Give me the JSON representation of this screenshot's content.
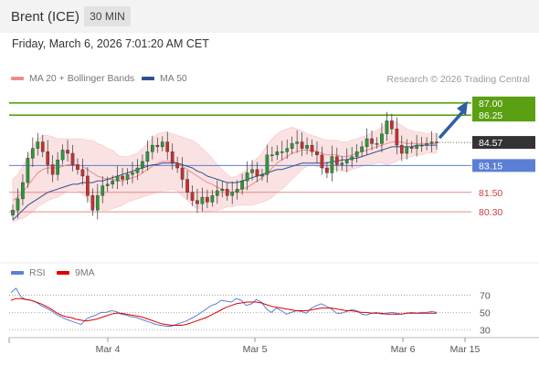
{
  "header": {
    "instrument": "Brent (ICE)",
    "interval": "30 MIN"
  },
  "timestamp": "Friday, March 6, 2026 7:01:20 AM CET",
  "legend": {
    "items": [
      {
        "label": "MA 20 + Bollinger Bands",
        "color": "#f08c8c"
      },
      {
        "label": "MA 50",
        "color": "#2f4f8f"
      }
    ],
    "credit": "Research © 2026 Trading Central"
  },
  "rsi_legend": {
    "items": [
      {
        "label": "RSI",
        "color": "#5b7fd4"
      },
      {
        "label": "9MA",
        "color": "#e00000"
      }
    ]
  },
  "colors": {
    "resistance": "#5aa012",
    "pivot": "#5b7fd4",
    "support": "#e88a8a",
    "current": "#333333",
    "candle_up": "#2a9a3a",
    "candle_down": "#c73030",
    "band_fill": "#fbe2e2"
  },
  "chart_data": [
    {
      "type": "candlestick",
      "ylim": [
        77.5,
        88.0
      ],
      "x_ticks": [
        "Mar 4",
        "Mar 5",
        "Mar 6",
        "Mar 15"
      ],
      "levels": [
        {
          "label": "87.00",
          "value": 87.0,
          "kind": "resistance"
        },
        {
          "label": "86.25",
          "value": 86.25,
          "kind": "resistance"
        },
        {
          "label": "84.57",
          "value": 84.57,
          "kind": "current"
        },
        {
          "label": "83.15",
          "value": 83.15,
          "kind": "pivot"
        },
        {
          "label": "81.50",
          "value": 81.5,
          "kind": "support"
        },
        {
          "label": "80.30",
          "value": 80.3,
          "kind": "support"
        }
      ],
      "closes": [
        80.4,
        81.1,
        82.1,
        83.6,
        84.2,
        84.6,
        84.0,
        83.2,
        82.6,
        83.5,
        84.1,
        83.9,
        83.2,
        82.9,
        82.5,
        81.3,
        80.4,
        81.3,
        81.9,
        82.0,
        82.2,
        82.5,
        82.3,
        82.6,
        82.7,
        83.0,
        83.4,
        84.0,
        84.4,
        84.3,
        84.6,
        84.0,
        83.3,
        83.0,
        82.3,
        81.5,
        81.0,
        80.8,
        81.2,
        80.9,
        81.3,
        81.6,
        81.7,
        81.3,
        81.5,
        81.7,
        82.2,
        82.7,
        82.9,
        82.5,
        82.6,
        83.8,
        83.8,
        84.0,
        84.0,
        84.2,
        84.5,
        84.6,
        84.2,
        84.4,
        84.0,
        83.8,
        83.0,
        82.7,
        83.7,
        83.2,
        83.3,
        83.5,
        83.7,
        84.0,
        84.3,
        84.8,
        84.5,
        84.5,
        85.1,
        85.9,
        85.4,
        84.4,
        83.9,
        84.3,
        84.2,
        84.4,
        84.4,
        84.5,
        84.6,
        84.57
      ],
      "ma20": [
        81.0,
        81.2,
        81.5,
        81.9,
        82.3,
        82.7,
        82.9,
        83.0,
        83.0,
        83.0,
        83.1,
        83.2,
        83.2,
        83.2,
        83.1,
        82.9,
        82.7,
        82.5,
        82.4,
        82.3,
        82.3,
        82.2,
        82.2,
        82.3,
        82.4,
        82.5,
        82.7,
        82.9,
        83.1,
        83.3,
        83.4,
        83.4,
        83.4,
        83.3,
        83.1,
        82.9,
        82.7,
        82.5,
        82.3,
        82.1,
        82.0,
        81.8,
        81.7,
        81.6,
        81.5,
        81.6,
        81.7,
        81.8,
        82.0,
        82.2,
        82.4,
        82.7,
        83.0,
        83.3,
        83.5,
        83.7,
        83.9,
        84.0,
        84.1,
        84.1,
        84.1,
        84.0,
        83.9,
        83.8,
        83.8,
        83.8,
        83.7,
        83.7,
        83.8,
        83.9,
        84.0,
        84.1,
        84.2,
        84.3,
        84.4,
        84.5,
        84.6,
        84.6,
        84.6,
        84.5,
        84.5,
        84.5,
        84.5,
        84.5,
        84.5,
        84.5
      ],
      "bb_width": [
        1.3,
        1.4,
        1.6,
        1.8,
        2.0,
        2.1,
        2.1,
        2.0,
        1.9,
        1.8,
        1.7,
        1.6,
        1.6,
        1.6,
        1.7,
        1.8,
        2.0,
        2.0,
        2.0,
        1.9,
        1.8,
        1.6,
        1.5,
        1.4,
        1.4,
        1.4,
        1.5,
        1.6,
        1.7,
        1.8,
        1.8,
        1.8,
        1.7,
        1.7,
        1.8,
        1.9,
        2.0,
        2.0,
        1.9,
        1.8,
        1.6,
        1.4,
        1.2,
        1.0,
        0.9,
        0.9,
        1.0,
        1.1,
        1.3,
        1.4,
        1.5,
        1.7,
        1.8,
        1.8,
        1.8,
        1.7,
        1.6,
        1.4,
        1.2,
        1.0,
        0.9,
        0.9,
        0.9,
        0.9,
        0.9,
        0.9,
        0.9,
        0.9,
        0.9,
        0.9,
        0.9,
        0.9,
        1.0,
        1.0,
        1.1,
        1.3,
        1.3,
        1.2,
        1.0,
        0.9,
        0.8,
        0.7,
        0.7,
        0.6,
        0.6,
        0.6
      ],
      "ma50": [
        79.8,
        80.1,
        80.4,
        80.7,
        80.9,
        81.1,
        81.3,
        81.5,
        81.6,
        81.7,
        81.8,
        81.9,
        82.0,
        82.0,
        82.1,
        82.1,
        82.1,
        82.2,
        82.2,
        82.3,
        82.4,
        82.5,
        82.6,
        82.7,
        82.8,
        82.9,
        83.0,
        83.1,
        83.2,
        83.2,
        83.3,
        83.3,
        83.3,
        83.3,
        83.2,
        83.1,
        83.0,
        82.8,
        82.7,
        82.5,
        82.4,
        82.3,
        82.2,
        82.1,
        82.1,
        82.1,
        82.2,
        82.3,
        82.4,
        82.5,
        82.6,
        82.7,
        82.8,
        82.9,
        82.9,
        83.0,
        83.1,
        83.2,
        83.3,
        83.3,
        83.3,
        83.3,
        83.3,
        83.3,
        83.4,
        83.4,
        83.5,
        83.5,
        83.6,
        83.6,
        83.7,
        83.8,
        83.9,
        84.0,
        84.1,
        84.2,
        84.3,
        84.3,
        84.3,
        84.3,
        84.3,
        84.4,
        84.4,
        84.4,
        84.4,
        84.4
      ],
      "projection": {
        "from": 84.57,
        "to": 87.0
      }
    },
    {
      "type": "line",
      "ylim": [
        25,
        80
      ],
      "y_ticks": [
        70,
        50,
        30
      ],
      "reference_lines": [
        70,
        50,
        30
      ],
      "series": [
        {
          "name": "RSI",
          "values": [
            73,
            78,
            68,
            65,
            64,
            62,
            58,
            55,
            52,
            48,
            45,
            42,
            40,
            38,
            36,
            42,
            45,
            47,
            50,
            50,
            52,
            51,
            48,
            47,
            45,
            44,
            42,
            40,
            38,
            36,
            35,
            34,
            34,
            36,
            38,
            40,
            43,
            46,
            50,
            54,
            58,
            60,
            64,
            63,
            62,
            66,
            64,
            58,
            60,
            65,
            62,
            54,
            50,
            55,
            52,
            48,
            50,
            52,
            51,
            49,
            55,
            58,
            60,
            57,
            54,
            49,
            49,
            51,
            53,
            52,
            48,
            47,
            49,
            50,
            48,
            49,
            50,
            49,
            48,
            49,
            50,
            49,
            50,
            50,
            51,
            50
          ]
        },
        {
          "name": "9MA",
          "values": [
            64,
            66,
            66,
            65,
            64,
            62,
            60,
            57,
            54,
            50,
            47,
            45,
            44,
            42,
            41,
            40,
            41,
            42,
            44,
            46,
            48,
            49,
            49,
            48,
            47,
            46,
            45,
            43,
            41,
            39,
            37,
            36,
            35,
            35,
            35,
            36,
            38,
            40,
            42,
            44,
            47,
            50,
            53,
            56,
            58,
            60,
            61,
            62,
            62,
            62,
            61,
            59,
            57,
            56,
            55,
            54,
            53,
            52,
            52,
            52,
            53,
            54,
            55,
            55,
            55,
            54,
            53,
            52,
            52,
            51,
            50,
            50,
            49,
            49,
            49,
            48,
            48,
            48,
            48,
            49,
            49,
            49,
            49,
            49,
            49,
            49
          ]
        }
      ]
    }
  ]
}
